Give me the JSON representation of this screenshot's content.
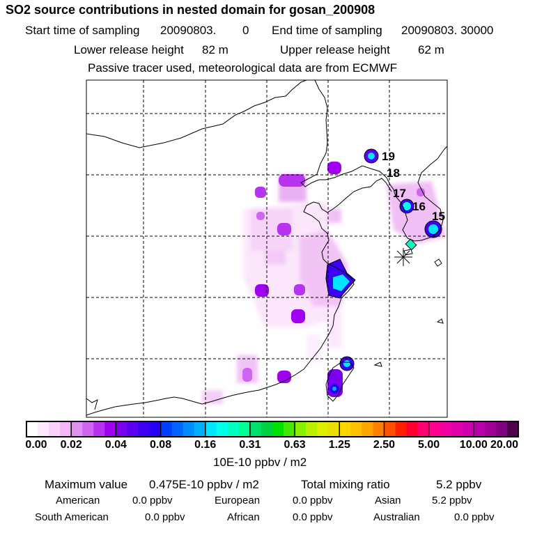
{
  "title": "SO2 source contributions in nested domain for gosan_200908",
  "header": {
    "start_label": "Start time of sampling",
    "start_value": "20090803.",
    "start_hour": "0",
    "end_label": "End time of sampling",
    "end_value": "20090803. 30000",
    "lower_label": "Lower release height",
    "lower_value": "82 m",
    "upper_label": "Upper release height",
    "upper_value": "62 m",
    "note": "Passive tracer used, meteorological data are from ECMWF"
  },
  "map": {
    "source_labels": [
      "19",
      "18",
      "17",
      "16",
      "15"
    ],
    "receptor": "gosan (asterisk marker)"
  },
  "colorbar": {
    "ticks": [
      "0.00",
      "0.02",
      "0.04",
      "0.08",
      "0.16",
      "0.31",
      "0.63",
      "1.25",
      "2.50",
      "5.00",
      "10.00",
      "20.00"
    ],
    "units": "10E-10 ppbv / m2",
    "colors": [
      "#ffffff",
      "#fde9fd",
      "#f9d2fb",
      "#f2b7f6",
      "#e08ff2",
      "#cf66f0",
      "#b833f0",
      "#a000f0",
      "#7a00f0",
      "#5b00f0",
      "#3d00f2",
      "#2400f5",
      "#0040ff",
      "#0066ff",
      "#008cff",
      "#00b0ff",
      "#00e6ff",
      "#00ffea",
      "#00ffc0",
      "#00ff95",
      "#00e06a",
      "#00d040",
      "#00e000",
      "#44e800",
      "#88f000",
      "#bbee00",
      "#ddee00",
      "#eedd00",
      "#ffd500",
      "#ffc000",
      "#ffa500",
      "#ff8000",
      "#ff5000",
      "#ff2000",
      "#ff0030",
      "#ff0070",
      "#ff0090",
      "#f000a0",
      "#e000a8",
      "#d000b0",
      "#b800a8",
      "#a00098",
      "#800080",
      "#50004c"
    ]
  },
  "summary": {
    "max_label": "Maximum value",
    "max_value": "0.475E-10 ppbv / m2",
    "total_label": "Total mixing ratio",
    "total_value": "5.2 ppbv",
    "american_label": "American",
    "american_value": "0.0 ppbv",
    "european_label": "European",
    "european_value": "0.0 ppbv",
    "asian_label": "Asian",
    "asian_value": "5.2 ppbv",
    "south_american_label": "South American",
    "south_american_value": "0.0 ppbv",
    "african_label": "African",
    "african_value": "0.0 ppbv",
    "australian_label": "Australian",
    "australian_value": "0.0 ppbv"
  }
}
